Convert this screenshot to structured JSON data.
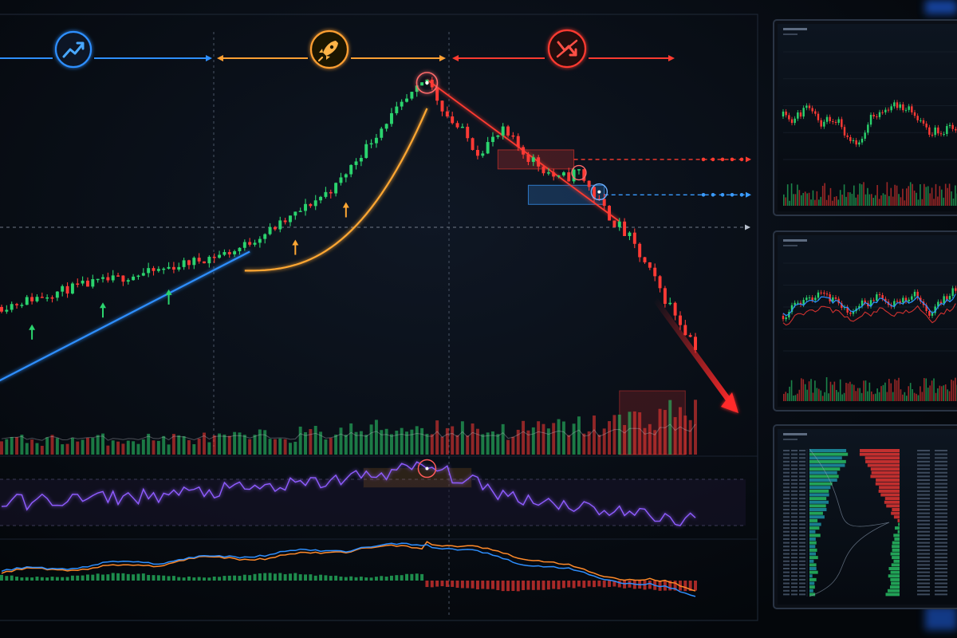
{
  "chart_data": [
    {
      "type": "candlestick",
      "phases": [
        {
          "name": "uptrend",
          "icon": "trend-up-icon",
          "color": "#2e8fff"
        },
        {
          "name": "parabolic-rally",
          "icon": "rocket-icon",
          "color": "#ff9c2a"
        },
        {
          "name": "crash",
          "icon": "stop-trend-icon",
          "color": "#ff3b30"
        }
      ],
      "candles_per_phase": [
        46,
        40,
        52
      ],
      "price_path": [
        {
          "bar": 0,
          "close": 0.23
        },
        {
          "bar": 15,
          "close": 0.3
        },
        {
          "bar": 30,
          "close": 0.35
        },
        {
          "bar": 46,
          "close": 0.42
        },
        {
          "bar": 56,
          "close": 0.52
        },
        {
          "bar": 66,
          "close": 0.64
        },
        {
          "bar": 76,
          "close": 0.86
        },
        {
          "bar": 84,
          "close": 1.0
        },
        {
          "bar": 88,
          "close": 0.88
        },
        {
          "bar": 94,
          "close": 0.76
        },
        {
          "bar": 99,
          "close": 0.82
        },
        {
          "bar": 104,
          "close": 0.74
        },
        {
          "bar": 110,
          "close": 0.66
        },
        {
          "bar": 114,
          "close": 0.69
        },
        {
          "bar": 118,
          "close": 0.58
        },
        {
          "bar": 124,
          "close": 0.46
        },
        {
          "bar": 131,
          "close": 0.26
        },
        {
          "bar": 137,
          "close": 0.1
        }
      ],
      "peak_bar": 84,
      "resistance_level": 0.73,
      "support_level": 0.61,
      "reference_level": 0.5,
      "colors": {
        "up": "#2bd46e",
        "down": "#ff3a35",
        "uptrend_line": "#2e8fff",
        "parabola": "#ffa733",
        "downtrend_line": "#ff3b30",
        "resistance": "#ff3b30",
        "support": "#3a9bff"
      }
    },
    {
      "type": "bar",
      "name": "volume",
      "volume_path": [
        {
          "bar": 0,
          "value": 0.3
        },
        {
          "bar": 46,
          "value": 0.35
        },
        {
          "bar": 84,
          "value": 0.6
        },
        {
          "bar": 100,
          "value": 0.5
        },
        {
          "bar": 120,
          "value": 0.65
        },
        {
          "bar": 137,
          "value": 1.0
        }
      ]
    },
    {
      "type": "line",
      "name": "oscillator",
      "color": "#8f5cff",
      "peak_bar": 84,
      "path": [
        {
          "bar": 0,
          "value": 0.45
        },
        {
          "bar": 30,
          "value": 0.55
        },
        {
          "bar": 60,
          "value": 0.7
        },
        {
          "bar": 84,
          "value": 0.95
        },
        {
          "bar": 100,
          "value": 0.55
        },
        {
          "bar": 120,
          "value": 0.35
        },
        {
          "bar": 137,
          "value": 0.2
        }
      ]
    },
    {
      "type": "line",
      "name": "macd",
      "series": [
        {
          "color": "#2e8fff"
        },
        {
          "color": "#ff8a2a"
        }
      ],
      "histogram": {
        "up": "#2bd46e",
        "down": "#ff3a35"
      }
    }
  ],
  "side_monitors": [
    {
      "kind": "candles-panel"
    },
    {
      "kind": "candles-with-ma-panel"
    },
    {
      "kind": "order-book-depth-panel"
    }
  ]
}
